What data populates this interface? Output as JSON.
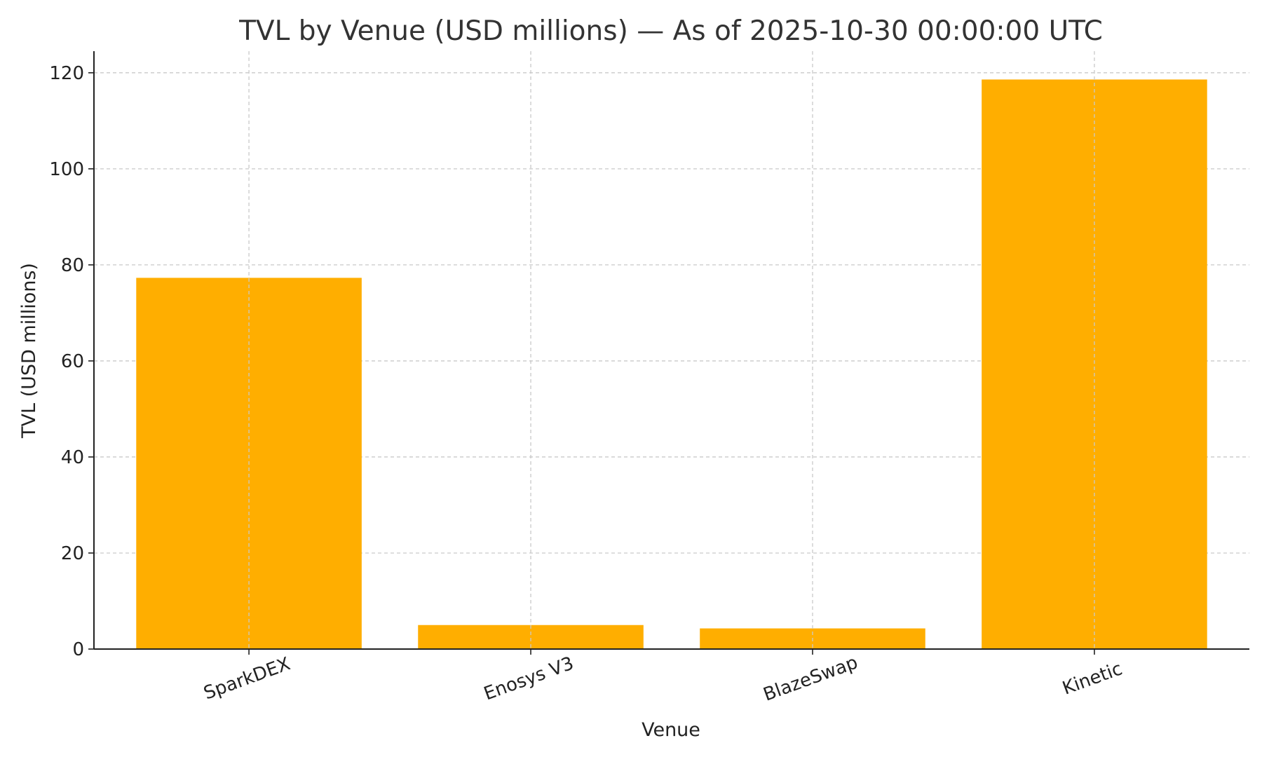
{
  "chart_data": {
    "type": "bar",
    "title": "TVL by Venue (USD millions) — As of 2025-10-30 00:00:00 UTC",
    "xlabel": "Venue",
    "ylabel": "TVL (USD millions)",
    "categories": [
      "SparkDEX",
      "Enosys V3",
      "BlazeSwap",
      "Kinetic"
    ],
    "values": [
      77.3,
      5.0,
      4.3,
      118.6
    ],
    "ylim": [
      0,
      124.5
    ],
    "yticks": [
      0,
      20,
      40,
      60,
      80,
      100,
      120
    ],
    "grid": true,
    "bar_color": "#FFAE00"
  }
}
